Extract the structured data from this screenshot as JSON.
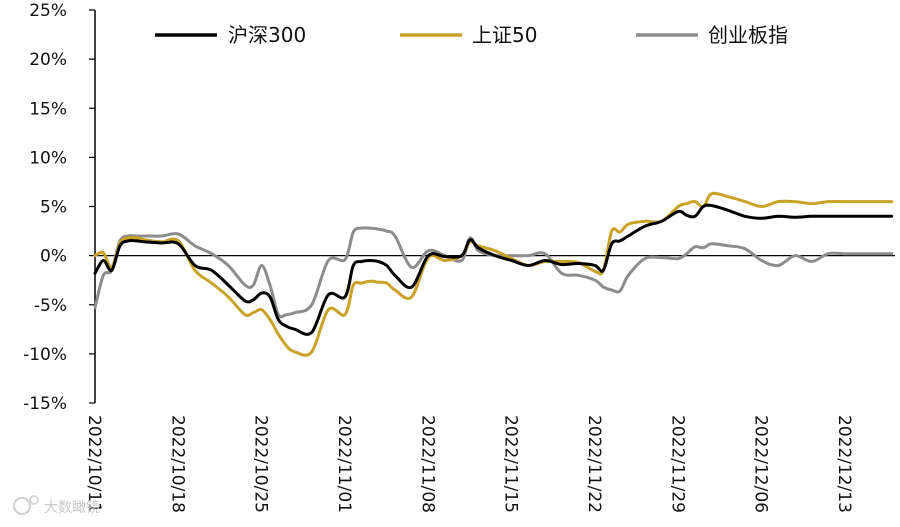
{
  "chart_data": {
    "type": "line",
    "yunit": "%",
    "ylim": [
      -15,
      25
    ],
    "yticks": [
      25,
      20,
      15,
      10,
      5,
      0,
      -5,
      -10,
      -15
    ],
    "ytick_labels": [
      "25%",
      "20%",
      "15%",
      "10%",
      "5%",
      "0%",
      "-5%",
      "-10%",
      "-15%"
    ],
    "xlim": [
      0,
      48
    ],
    "xtick_positions": [
      0,
      5,
      10,
      15,
      20,
      25,
      30,
      35,
      40,
      45
    ],
    "xtick_labels": [
      "2022/10/11",
      "2022/10/18",
      "2022/10/25",
      "2022/11/01",
      "2022/11/08",
      "2022/11/15",
      "2022/11/22",
      "2022/11/29",
      "2022/12/06",
      "2022/12/13"
    ],
    "legend_position": "top",
    "grid": false,
    "series": [
      {
        "name": "沪深300",
        "color": "#000000",
        "x": [
          0,
          0.5,
          1,
          1.5,
          2,
          2.5,
          3,
          4,
          5,
          6,
          7,
          8,
          9,
          9.5,
          10,
          10.5,
          11,
          11.5,
          12,
          13,
          14,
          15,
          15.5,
          16,
          16.5,
          17,
          17.5,
          18,
          19,
          20,
          21,
          22,
          22.5,
          23,
          24,
          25,
          26,
          27,
          28,
          29,
          30,
          30.5,
          31,
          31.5,
          32,
          33,
          34,
          35,
          35.5,
          36,
          36.5,
          37,
          38,
          39,
          40,
          41,
          42,
          43,
          44,
          45,
          46,
          47,
          47.8
        ],
        "y": [
          -1.8,
          -0.5,
          -1.5,
          1.0,
          1.5,
          1.5,
          1.4,
          1.3,
          1.2,
          -1.0,
          -1.5,
          -3.0,
          -4.6,
          -4.5,
          -3.8,
          -4.2,
          -6.5,
          -7.2,
          -7.5,
          -7.8,
          -4.0,
          -4.2,
          -1.0,
          -0.6,
          -0.5,
          -0.6,
          -1.0,
          -2.0,
          -3.2,
          0.0,
          -0.1,
          0.0,
          1.6,
          0.8,
          0.0,
          -0.5,
          -1.0,
          -0.5,
          -0.9,
          -0.8,
          -1.0,
          -1.5,
          1.2,
          1.5,
          2.0,
          3.0,
          3.5,
          4.5,
          4.1,
          4.0,
          5.0,
          5.1,
          4.6,
          4.0,
          3.8,
          4.0,
          3.9,
          4.0,
          4.0,
          4.0,
          4.0,
          4.0,
          4.0
        ]
      },
      {
        "name": "上证50",
        "color": "#C9A227",
        "x": [
          0,
          0.5,
          1,
          1.5,
          2,
          2.5,
          3,
          4,
          5,
          6,
          7,
          8,
          9,
          9.5,
          10,
          10.5,
          11,
          11.5,
          12,
          13,
          14,
          15,
          15.5,
          16,
          16.5,
          17,
          17.5,
          18,
          19,
          20,
          21,
          22,
          22.5,
          23,
          24,
          25,
          26,
          27,
          28,
          29,
          30,
          30.5,
          31,
          31.5,
          32,
          33,
          34,
          35,
          35.5,
          36,
          36.5,
          37,
          38,
          39,
          40,
          41,
          42,
          43,
          44,
          45,
          46,
          47,
          47.8
        ],
        "y": [
          0.0,
          0.3,
          -1.2,
          1.3,
          1.8,
          1.8,
          1.6,
          1.4,
          1.5,
          -1.5,
          -2.8,
          -4.2,
          -6.0,
          -5.8,
          -5.5,
          -6.5,
          -8.0,
          -9.2,
          -9.8,
          -9.8,
          -5.5,
          -6.0,
          -3.0,
          -2.8,
          -2.6,
          -2.7,
          -2.8,
          -3.5,
          -4.2,
          -0.2,
          -0.5,
          0.0,
          1.4,
          1.0,
          0.5,
          -0.3,
          -1.0,
          -0.6,
          -0.6,
          -0.7,
          -1.6,
          -1.5,
          2.5,
          2.4,
          3.2,
          3.5,
          3.5,
          5.0,
          5.3,
          5.5,
          5.0,
          6.3,
          6.0,
          5.5,
          5.0,
          5.5,
          5.5,
          5.3,
          5.5,
          5.5,
          5.5,
          5.5,
          5.5
        ]
      },
      {
        "name": "创业板指",
        "color": "#8C8C8C",
        "x": [
          0,
          0.5,
          1,
          1.5,
          2,
          2.5,
          3,
          4,
          5,
          6,
          7,
          8,
          9,
          9.5,
          10,
          10.5,
          11,
          11.5,
          12,
          13,
          14,
          15,
          15.5,
          16,
          16.5,
          17,
          17.5,
          18,
          19,
          20,
          21,
          22,
          22.5,
          23,
          24,
          25,
          26,
          27,
          28,
          29,
          30,
          30.5,
          31,
          31.5,
          32,
          33,
          34,
          35,
          35.5,
          36,
          36.5,
          37,
          38,
          39,
          40,
          41,
          42,
          43,
          44,
          45,
          46,
          47,
          47.8
        ],
        "y": [
          -5.3,
          -2.0,
          -1.5,
          1.5,
          2.0,
          2.0,
          2.0,
          2.0,
          2.2,
          1.0,
          0.2,
          -1.0,
          -3.0,
          -3.0,
          -1.0,
          -3.0,
          -6.0,
          -6.0,
          -5.8,
          -5.0,
          -0.5,
          -0.4,
          2.4,
          2.8,
          2.8,
          2.7,
          2.5,
          2.0,
          -1.2,
          0.5,
          0.0,
          -0.5,
          1.8,
          0.5,
          0.0,
          0.0,
          0.0,
          0.2,
          -1.8,
          -2.0,
          -2.5,
          -3.2,
          -3.5,
          -3.6,
          -2.0,
          -0.3,
          -0.2,
          -0.3,
          0.2,
          0.9,
          0.8,
          1.2,
          1.0,
          0.7,
          -0.5,
          -1.0,
          0.0,
          -0.6,
          0.2,
          0.2,
          0.2,
          0.2,
          0.2
        ]
      }
    ]
  },
  "watermark": {
    "text": "大数瞰镜"
  }
}
